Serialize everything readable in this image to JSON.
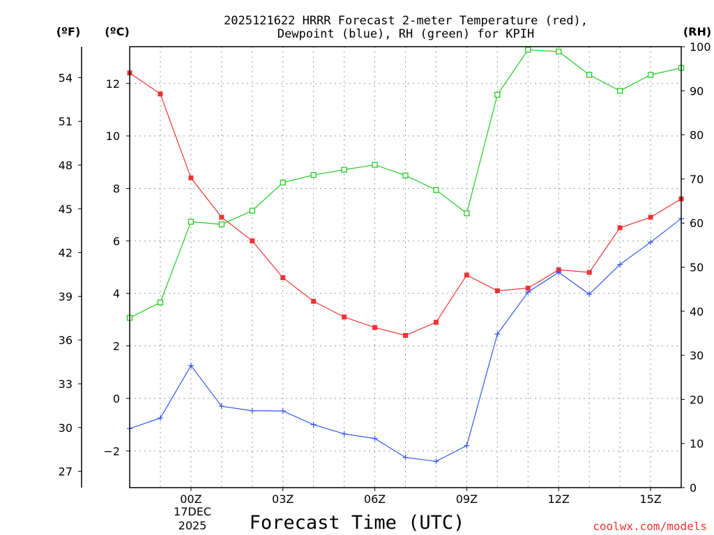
{
  "chart_data": {
    "type": "line",
    "title": [
      "2025121622 HRRR Forecast 2-meter Temperature (red),",
      "Dewpoint (blue), RH (green) for KPIH"
    ],
    "xlabel": "Forecast Time (UTC)",
    "x_tick_labels": [
      "00Z",
      "03Z",
      "06Z",
      "09Z",
      "12Z",
      "15Z"
    ],
    "x_date_label": [
      "17DEC",
      "2025"
    ],
    "x_hours": [
      -2,
      -1,
      0,
      1,
      2,
      3,
      4,
      5,
      6,
      7,
      8,
      9,
      10,
      11,
      12,
      13,
      14,
      15,
      16
    ],
    "y_left_celsius": {
      "unit_label": "(ºC)",
      "range": [
        -3.4,
        13.4
      ],
      "ticks": [
        "12",
        "10",
        "8",
        "6",
        "4",
        "2",
        "0",
        "−2"
      ]
    },
    "y_left_fahrenheit": {
      "unit_label": "(ºF)",
      "ticks": [
        "54",
        "51",
        "48",
        "45",
        "42",
        "39",
        "36",
        "33",
        "30",
        "27"
      ]
    },
    "y_right_rh": {
      "unit_label": "(RH)",
      "range": [
        0,
        100
      ],
      "ticks": [
        "100",
        "90",
        "80",
        "70",
        "60",
        "50",
        "40",
        "30",
        "20",
        "10",
        "0"
      ]
    },
    "series": [
      {
        "name": "2-meter Temperature",
        "unit": "C",
        "color": "#ee3333",
        "marker": "filled-square",
        "values": [
          12.4,
          11.6,
          8.4,
          6.9,
          6.0,
          4.6,
          3.7,
          3.1,
          2.7,
          2.4,
          2.9,
          4.7,
          4.1,
          4.2,
          4.9,
          4.8,
          6.5,
          6.9,
          7.6
        ]
      },
      {
        "name": "Dewpoint",
        "unit": "C",
        "color": "#3355ee",
        "marker": "plus",
        "values": [
          -1.15,
          -0.75,
          1.25,
          -0.3,
          -0.47,
          -0.48,
          -1.0,
          -1.35,
          -1.53,
          -2.25,
          -2.4,
          -1.8,
          2.45,
          4.05,
          4.8,
          3.97,
          5.1,
          5.95,
          6.85
        ]
      },
      {
        "name": "RH",
        "unit": "%",
        "color": "#22cc22",
        "marker": "open-square",
        "values": [
          38.5,
          42,
          60.3,
          59.7,
          62.8,
          69.2,
          70.9,
          72.1,
          73.2,
          70.8,
          67.5,
          62.2,
          89.1,
          99.3,
          98.9,
          93.6,
          90.0,
          93.6,
          95.2
        ]
      }
    ],
    "grid": true,
    "credit": "coolwx.com/models"
  }
}
